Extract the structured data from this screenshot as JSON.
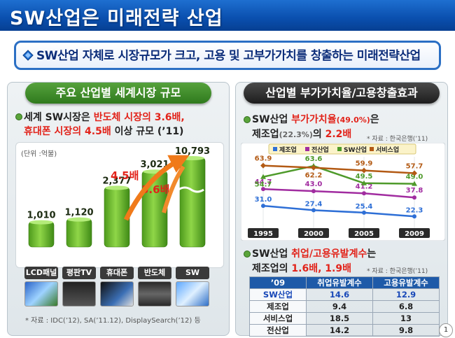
{
  "header": {
    "title": "SW산업은 미래전략 산업"
  },
  "banner": {
    "text": "SW산업 자체로 시장규모가 크고, 고용 및 고부가가치를 창출하는 미래전략산업"
  },
  "left_panel": {
    "title": "주요 산업별 세계시장 규모",
    "desc_line1_a": "세계 SW시장은 ",
    "desc_line1_b": "반도체 시장의 3.6배,",
    "desc_line2_a": "휴대폰 시장의 4.5배",
    "desc_line2_b": " 이상 규모 (’11)",
    "unit": "(단위 :억불)",
    "arrow_labels": [
      "4.5배",
      "3.6배"
    ],
    "source": "* 자료 : IDC(’12), SA(’11.12), DisplaySearch(’12) 등"
  },
  "right_panel": {
    "title": "산업별 부가가치율/고용창출효과",
    "va_line1_a": "SW산업 ",
    "va_line1_b": "부가가치율",
    "va_line1_c": "(49.0%)",
    "va_line1_d": "은",
    "va_line2_a": "제조업",
    "va_line2_b": "(22.3%)",
    "va_line2_c": "의 ",
    "va_line2_d": "2.2배",
    "va_source": "* 자료 : 한국은행(’11)",
    "emp_line1_a": "SW산업 ",
    "emp_line1_b": "취업/고용유발계수",
    "emp_line1_c": "는",
    "emp_line2_a": "제조업의 ",
    "emp_line2_b": "1.6배, 1.9배",
    "emp_source": "* 자료 : 한국은행(’11)",
    "table": {
      "headers": [
        "’09",
        "취업유발계수",
        "고용유발계수"
      ],
      "rows": [
        [
          "SW산업",
          "14.6",
          "12.9"
        ],
        [
          "제조업",
          "9.4",
          "6.8"
        ],
        [
          "서비스업",
          "18.5",
          "13"
        ],
        [
          "전산업",
          "14.2",
          "9.8"
        ]
      ]
    }
  },
  "page_number": "1",
  "colors": {
    "header_blue": "#0a4fae",
    "bar_green": "#6bbf2a",
    "accent_red": "#e2231a",
    "arrow_orange": "#f07a1a"
  },
  "chart_data": [
    {
      "type": "bar",
      "categories": [
        "LCD패널",
        "평판TV",
        "휴대폰",
        "반도체",
        "SW"
      ],
      "values": [
        1010,
        1120,
        2377,
        3021,
        10793
      ],
      "value_labels": [
        "1,010",
        "1,120",
        "2,377",
        "3,021",
        "10,793"
      ],
      "title": "",
      "unit_label": "(단위 :억불)",
      "axis_break_on": "SW"
    },
    {
      "type": "line",
      "x": [
        "1995",
        "2000",
        "2005",
        "2009"
      ],
      "ylim": [
        15,
        70
      ],
      "legend_position": "top",
      "series": [
        {
          "name": "제조업",
          "color": "#2e6fd6",
          "values": [
            31.0,
            27.4,
            25.4,
            22.3
          ],
          "labels": [
            "31.0",
            "27.4",
            "25.4",
            "22.3"
          ]
        },
        {
          "name": "전산업",
          "color": "#a12ca0",
          "values": [
            44.7,
            43.0,
            41.2,
            37.8
          ],
          "labels": [
            "44.7",
            "43.0",
            "41.2",
            "37.8"
          ]
        },
        {
          "name": "SW산업",
          "color": "#4e9a2a",
          "values": [
            54.7,
            63.6,
            49.5,
            49.0
          ],
          "labels": [
            "54.7",
            "63.6",
            "49.5",
            "49.0"
          ]
        },
        {
          "name": "서비스업",
          "color": "#b35a14",
          "values": [
            63.9,
            62.2,
            59.9,
            57.7
          ],
          "labels": [
            "63.9",
            "62.2",
            "59.9",
            "57.7"
          ]
        }
      ]
    }
  ]
}
